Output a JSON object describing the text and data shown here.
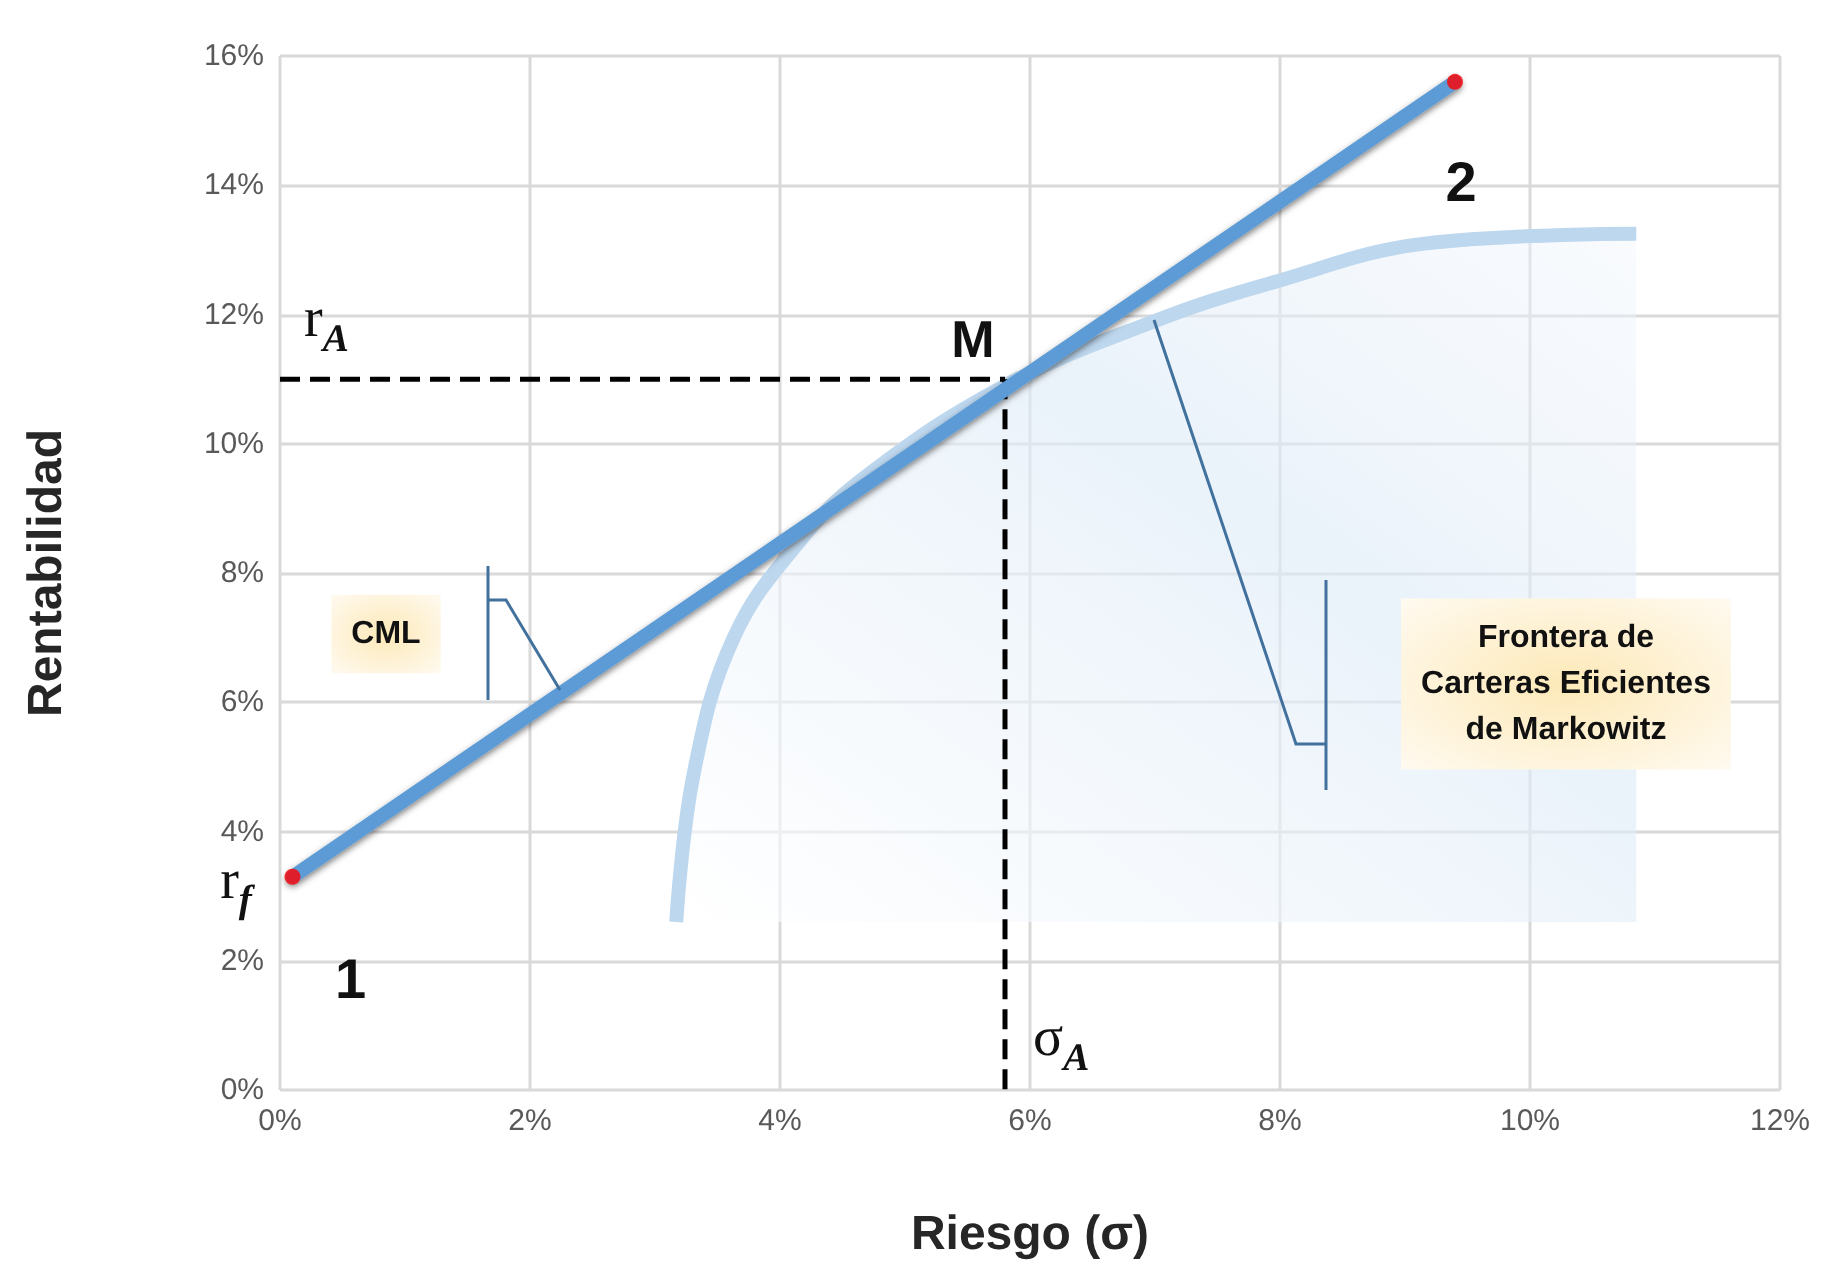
{
  "chart_data": {
    "type": "line",
    "xlabel": "Riesgo (σ)",
    "ylabel": "Rentabilidad",
    "xlim": [
      0,
      12
    ],
    "ylim": [
      0,
      16
    ],
    "xticks": [
      {
        "value": 0,
        "label": "0%"
      },
      {
        "value": 2,
        "label": "2%"
      },
      {
        "value": 4,
        "label": "4%"
      },
      {
        "value": 6,
        "label": "6%"
      },
      {
        "value": 8,
        "label": "8%"
      },
      {
        "value": 10,
        "label": "10%"
      },
      {
        "value": 12,
        "label": "12%"
      }
    ],
    "yticks": [
      {
        "value": 0,
        "label": "0%"
      },
      {
        "value": 2,
        "label": "2%"
      },
      {
        "value": 4,
        "label": "4%"
      },
      {
        "value": 6,
        "label": "6%"
      },
      {
        "value": 8,
        "label": "8%"
      },
      {
        "value": 10,
        "label": "10%"
      },
      {
        "value": 12,
        "label": "12%"
      },
      {
        "value": 14,
        "label": "14%"
      },
      {
        "value": 16,
        "label": "16%"
      }
    ],
    "grid": true,
    "marker": "none",
    "line_style": "solid",
    "series": [
      {
        "type": "area",
        "color": "#bdd7ee",
        "x": [
          3.17,
          3.31,
          3.63,
          4.16,
          4.69,
          5.8,
          7.0,
          7.95,
          9.17,
          10.85
        ],
        "values": [
          2.6,
          4.9,
          7.0,
          8.5,
          9.5,
          10.9,
          11.9,
          12.5,
          13.1,
          13.25
        ]
      },
      {
        "color": "#000000",
        "line_style": "dashed",
        "x": [
          0,
          5.8
        ],
        "values": [
          11,
          11
        ]
      },
      {
        "color": "#000000",
        "line_style": "dashed",
        "x": [
          5.8,
          5.8
        ],
        "values": [
          11,
          0
        ]
      },
      {
        "color": "#5b9bd5",
        "x": [
          0.1,
          9.4
        ],
        "values": [
          3.3,
          15.6
        ]
      },
      {
        "type": "scatter",
        "color": "#ff0000",
        "marker": "circle",
        "x": [
          0.1,
          9.4
        ],
        "values": [
          3.3,
          15.6
        ]
      }
    ],
    "annotations": [
      {
        "text": "r$_{A}$",
        "x": 0,
        "y": 11
      },
      {
        "text": "M",
        "x": 5.8,
        "y": 11
      },
      {
        "text": "σ$_{A}$",
        "x": 5.8,
        "y": 0
      },
      {
        "text": "r$_{f}$",
        "x": 0,
        "y": 3.3
      },
      {
        "text": "1",
        "x": 0.1,
        "y": 3.3
      },
      {
        "text": "2",
        "x": 9.4,
        "y": 15.6
      },
      "CML",
      "Frontera de\nCarteras Eficientes\nde Markowitz"
    ]
  }
}
